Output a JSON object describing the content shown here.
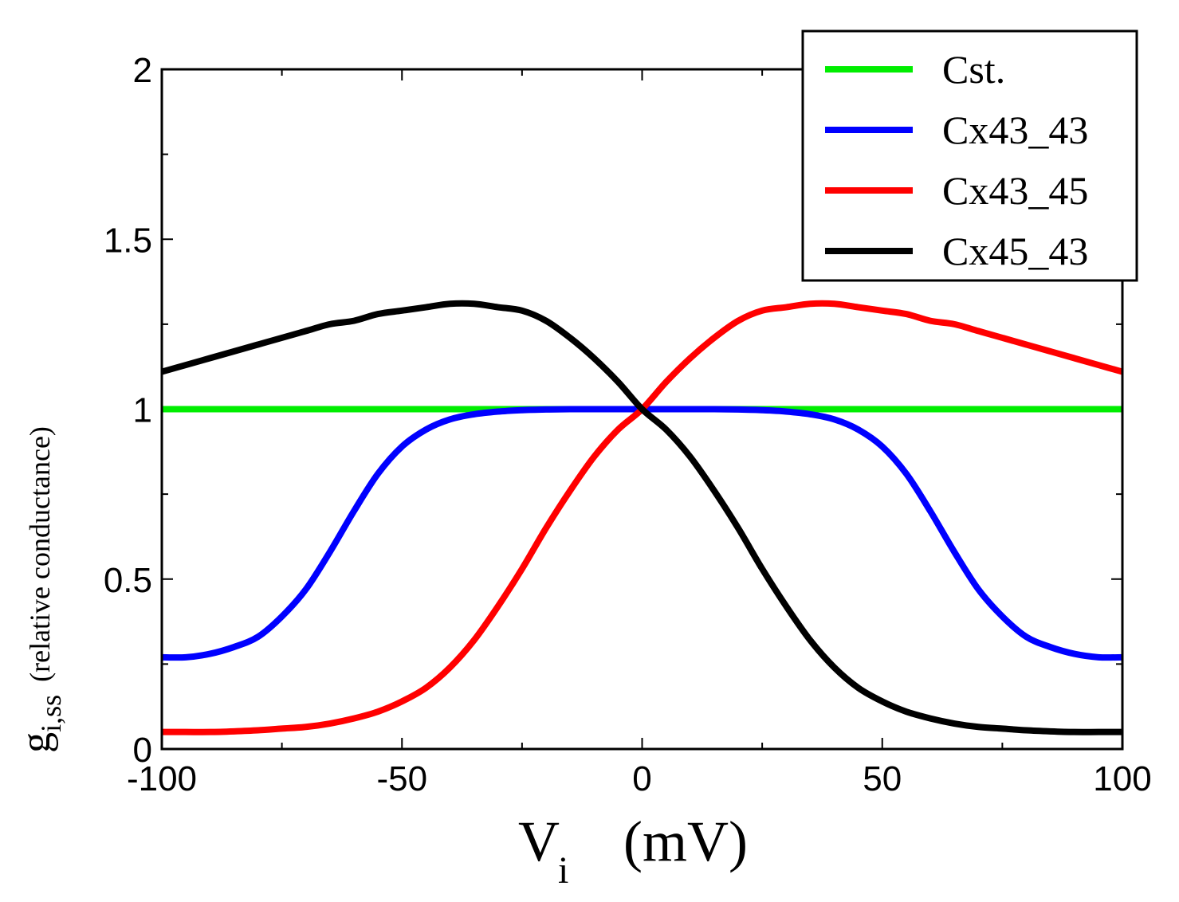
{
  "chart_data": {
    "type": "line",
    "xlabel": {
      "main": "V",
      "sub": "i",
      "unit": "(mV)"
    },
    "ylabel": {
      "main": "g",
      "sub": "i,ss",
      "note": "(relative conductance)"
    },
    "xlim": [
      -100,
      100
    ],
    "ylim": [
      0,
      2
    ],
    "xticks": [
      -100,
      -50,
      0,
      50,
      100
    ],
    "xtick_labels": [
      "-100",
      "-50",
      "0",
      "50",
      "100"
    ],
    "yticks": [
      0,
      0.5,
      1,
      1.5,
      2
    ],
    "ytick_labels": [
      "0",
      "0.5",
      "1",
      "1.5",
      "2"
    ],
    "legend_position": "top-right",
    "series": [
      {
        "name": "Cst.",
        "color": "#00ee00",
        "x": [
          -100,
          100
        ],
        "y": [
          1,
          1
        ]
      },
      {
        "name": "Cx43_43",
        "color": "#0000ff",
        "x": [
          -100,
          -95,
          -90,
          -85,
          -80,
          -75,
          -70,
          -65,
          -60,
          -55,
          -50,
          -45,
          -40,
          -35,
          -30,
          -25,
          -20,
          -15,
          -10,
          -5,
          0,
          5,
          10,
          15,
          20,
          25,
          30,
          35,
          40,
          45,
          50,
          55,
          60,
          65,
          70,
          75,
          80,
          85,
          90,
          95,
          100
        ],
        "y": [
          0.27,
          0.27,
          0.28,
          0.3,
          0.33,
          0.39,
          0.47,
          0.58,
          0.7,
          0.81,
          0.89,
          0.94,
          0.97,
          0.985,
          0.993,
          0.997,
          0.999,
          1.0,
          1.0,
          1.0,
          1.0,
          1.0,
          1.0,
          1.0,
          0.999,
          0.997,
          0.993,
          0.985,
          0.97,
          0.94,
          0.89,
          0.81,
          0.7,
          0.58,
          0.47,
          0.39,
          0.33,
          0.3,
          0.28,
          0.27,
          0.27
        ]
      },
      {
        "name": "Cx43_45",
        "color": "#ff0000",
        "x": [
          -100,
          -95,
          -90,
          -85,
          -80,
          -75,
          -70,
          -65,
          -60,
          -55,
          -50,
          -45,
          -40,
          -35,
          -30,
          -25,
          -20,
          -15,
          -10,
          -5,
          0,
          5,
          10,
          15,
          20,
          25,
          30,
          35,
          40,
          45,
          50,
          55,
          60,
          65,
          70,
          75,
          80,
          85,
          90,
          95,
          100
        ],
        "y": [
          0.05,
          0.05,
          0.05,
          0.052,
          0.055,
          0.06,
          0.065,
          0.075,
          0.09,
          0.11,
          0.14,
          0.18,
          0.24,
          0.32,
          0.42,
          0.53,
          0.65,
          0.76,
          0.86,
          0.94,
          1.0,
          1.08,
          1.15,
          1.21,
          1.26,
          1.29,
          1.3,
          1.31,
          1.31,
          1.3,
          1.29,
          1.28,
          1.26,
          1.25,
          1.23,
          1.21,
          1.19,
          1.17,
          1.15,
          1.13,
          1.11
        ]
      },
      {
        "name": "Cx45_43",
        "color": "#000000",
        "x": [
          -100,
          -95,
          -90,
          -85,
          -80,
          -75,
          -70,
          -65,
          -60,
          -55,
          -50,
          -45,
          -40,
          -35,
          -30,
          -25,
          -20,
          -15,
          -10,
          -5,
          0,
          5,
          10,
          15,
          20,
          25,
          30,
          35,
          40,
          45,
          50,
          55,
          60,
          65,
          70,
          75,
          80,
          85,
          90,
          95,
          100
        ],
        "y": [
          1.11,
          1.13,
          1.15,
          1.17,
          1.19,
          1.21,
          1.23,
          1.25,
          1.26,
          1.28,
          1.29,
          1.3,
          1.31,
          1.31,
          1.3,
          1.29,
          1.26,
          1.21,
          1.15,
          1.08,
          1.0,
          0.94,
          0.86,
          0.76,
          0.65,
          0.53,
          0.42,
          0.32,
          0.24,
          0.18,
          0.14,
          0.11,
          0.09,
          0.075,
          0.065,
          0.06,
          0.055,
          0.052,
          0.05,
          0.05,
          0.05
        ]
      }
    ]
  }
}
